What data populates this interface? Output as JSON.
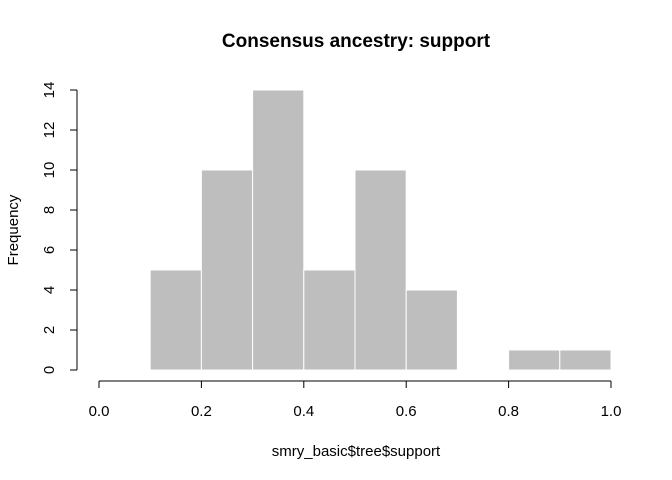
{
  "chart_data": {
    "type": "bar",
    "subtype": "histogram",
    "title": "Consensus ancestry: support",
    "xlabel": "smry_basic$tree$support",
    "ylabel": "Frequency",
    "bins": [
      {
        "x0": 0.1,
        "x1": 0.2,
        "count": 5
      },
      {
        "x0": 0.2,
        "x1": 0.3,
        "count": 10
      },
      {
        "x0": 0.3,
        "x1": 0.4,
        "count": 14
      },
      {
        "x0": 0.4,
        "x1": 0.5,
        "count": 5
      },
      {
        "x0": 0.5,
        "x1": 0.6,
        "count": 10
      },
      {
        "x0": 0.6,
        "x1": 0.7,
        "count": 4
      },
      {
        "x0": 0.7,
        "x1": 0.8,
        "count": 0
      },
      {
        "x0": 0.8,
        "x1": 0.9,
        "count": 1
      },
      {
        "x0": 0.9,
        "x1": 1.0,
        "count": 1
      }
    ],
    "xlim": [
      0,
      1
    ],
    "ylim": [
      0,
      14
    ],
    "xticks": [
      "0.0",
      "0.2",
      "0.4",
      "0.6",
      "0.8",
      "1.0"
    ],
    "yticks": [
      "0",
      "2",
      "4",
      "6",
      "8",
      "10",
      "12",
      "14"
    ],
    "bar_color": "#bebebe",
    "bar_border_color": "#ffffff",
    "grid": false,
    "legend": "none"
  }
}
